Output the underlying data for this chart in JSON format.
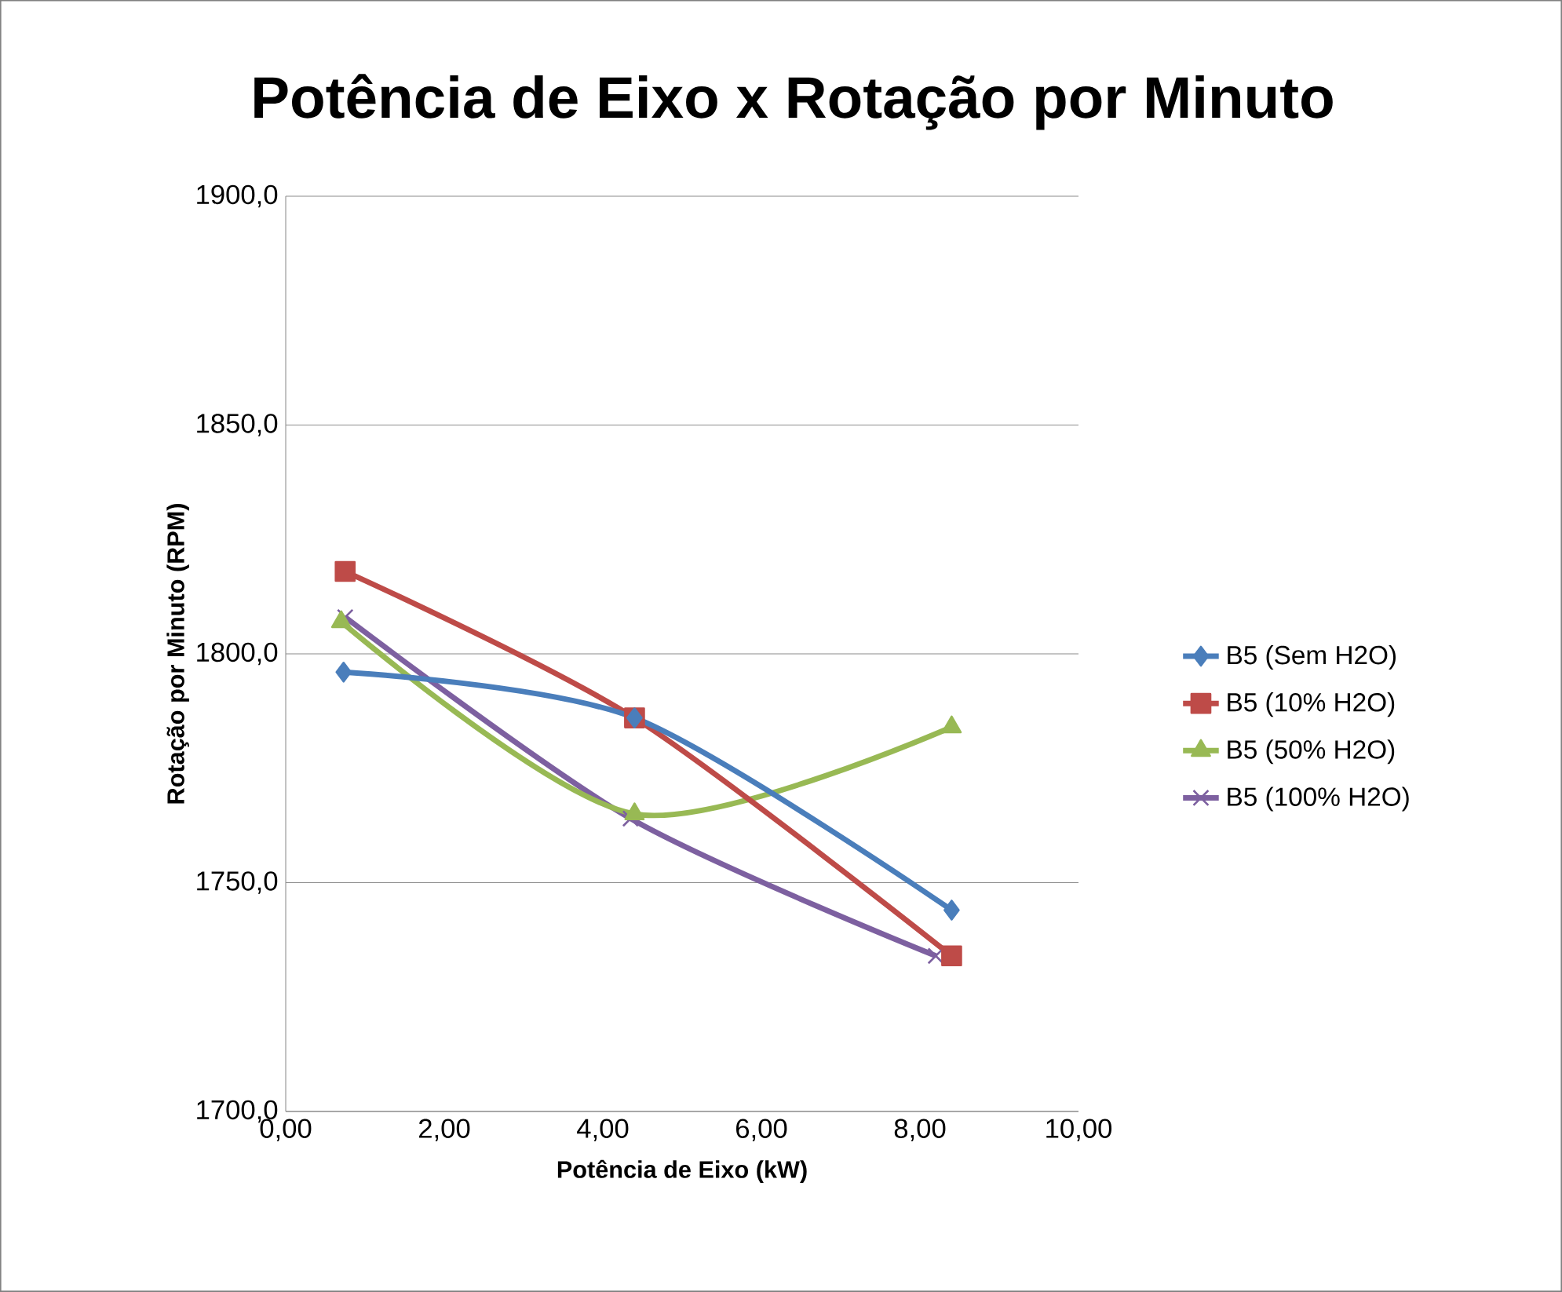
{
  "chart_data": {
    "type": "line",
    "title": "Potência de Eixo x Rotação por Minuto",
    "xlabel": "Potência de Eixo (kW)",
    "ylabel": "Rotação por Minuto (RPM)",
    "xlim": [
      0,
      10
    ],
    "ylim": [
      1700,
      1900
    ],
    "xticks": [
      {
        "value": 0,
        "label": "0,00"
      },
      {
        "value": 2,
        "label": "2,00"
      },
      {
        "value": 4,
        "label": "4,00"
      },
      {
        "value": 6,
        "label": "6,00"
      },
      {
        "value": 8,
        "label": "8,00"
      },
      {
        "value": 10,
        "label": "10,00"
      }
    ],
    "yticks": [
      {
        "value": 1700,
        "label": "1700,0"
      },
      {
        "value": 1750,
        "label": "1750,0"
      },
      {
        "value": 1800,
        "label": "1800,0"
      },
      {
        "value": 1850,
        "label": "1850,0"
      },
      {
        "value": 1900,
        "label": "1900,0"
      }
    ],
    "grid": "y",
    "legend": "right",
    "series": [
      {
        "name": "B5 (Sem H2O)",
        "color": "#4a7ebb",
        "marker": "diamond",
        "x": [
          0.73,
          4.4,
          8.4
        ],
        "values": [
          1796,
          1786,
          1744
        ]
      },
      {
        "name": "B5 (10% H2O)",
        "color": "#be4b48",
        "marker": "square",
        "x": [
          0.75,
          4.4,
          8.4
        ],
        "values": [
          1818,
          1786,
          1734
        ]
      },
      {
        "name": "B5 (50% H2O)",
        "color": "#98b954",
        "marker": "triangle",
        "x": [
          0.7,
          4.4,
          8.4
        ],
        "values": [
          1807,
          1765,
          1784
        ]
      },
      {
        "name": "B5 (100% H2O)",
        "color": "#7d60a0",
        "marker": "cross",
        "x": [
          0.75,
          4.35,
          8.2
        ],
        "values": [
          1808,
          1764,
          1734
        ]
      }
    ]
  }
}
